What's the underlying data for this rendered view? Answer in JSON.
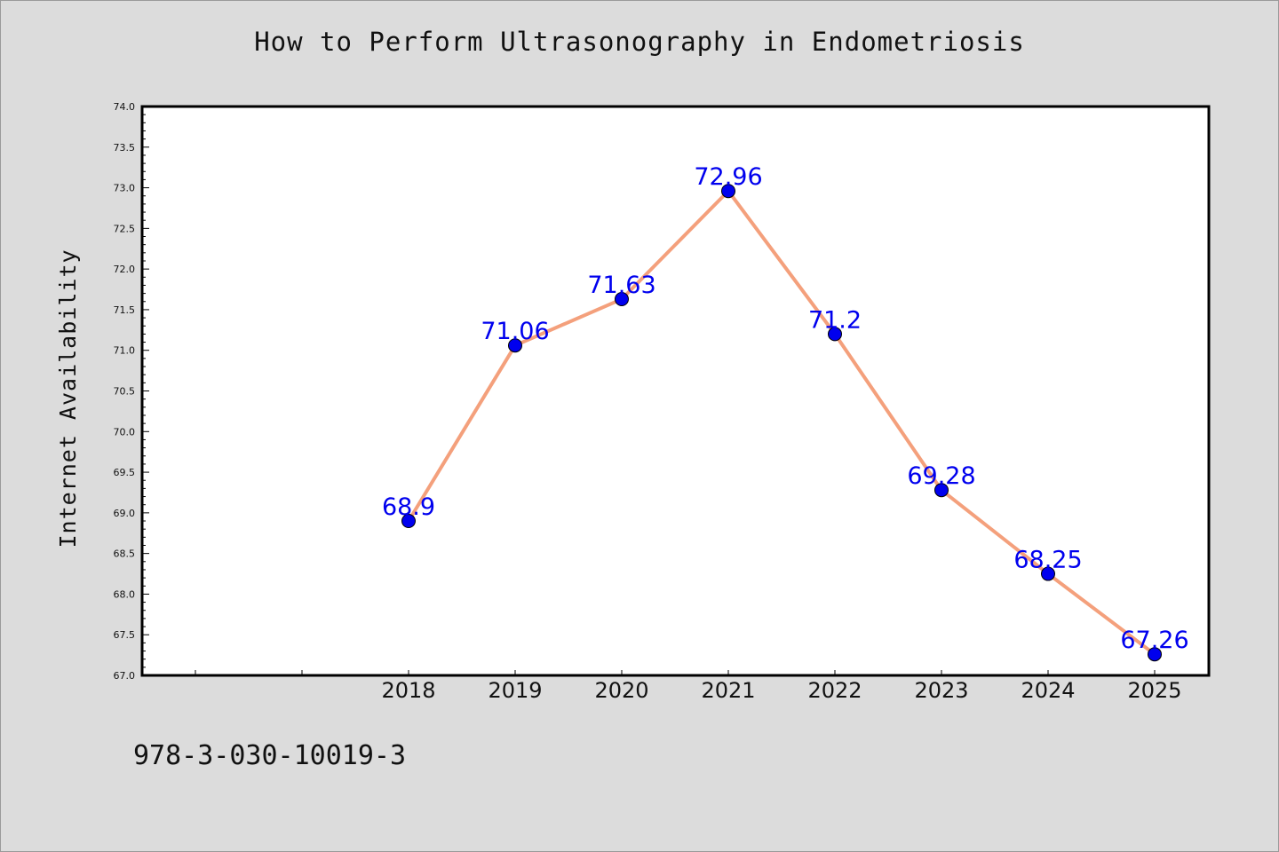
{
  "chart_data": {
    "type": "line",
    "title": "How to Perform Ultrasonography in Endometriosis",
    "xlabel": "",
    "ylabel": "Internet Availability",
    "categories": [
      "2018",
      "2019",
      "2020",
      "2021",
      "2022",
      "2023",
      "2024",
      "2025"
    ],
    "series": [
      {
        "values": [
          68.9,
          71.06,
          71.63,
          72.96,
          71.2,
          69.28,
          68.25,
          67.26
        ],
        "data_labels": [
          "68.9",
          "71.06",
          "71.63",
          "72.96",
          "71.2",
          "69.28",
          "68.25",
          "67.26"
        ],
        "line_color": "#f4a07c",
        "marker_color": "#0000ee",
        "label_color": "#0000ee"
      }
    ],
    "ylim": [
      67.0,
      74.0
    ],
    "yticks": [
      "67.0",
      "67.5",
      "68.0",
      "68.5",
      "69.0",
      "69.5",
      "70.0",
      "70.5",
      "71.0",
      "71.5",
      "72.0",
      "72.5",
      "73.0",
      "73.5",
      "74.0"
    ],
    "grid": false,
    "legend": "none"
  },
  "footer": {
    "isbn": "978-3-030-10019-3"
  }
}
